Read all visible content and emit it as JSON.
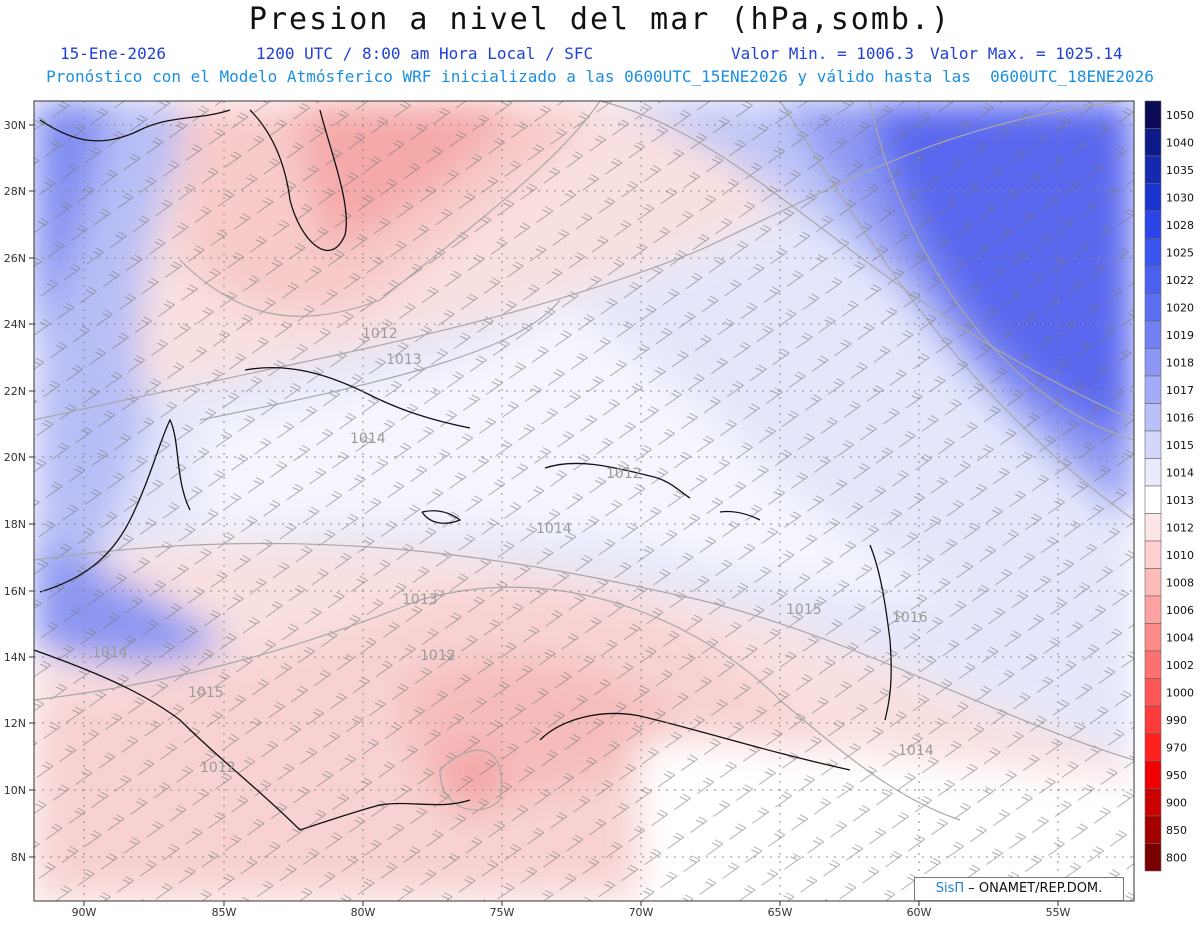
{
  "title": "Presion a nivel del mar (hPa,somb.)",
  "header": {
    "date": "15-Ene-2026",
    "time_info": "1200 UTC / 8:00 am Hora Local / SFC",
    "valor_min": "Valor Min. = 1006.3",
    "valor_max": "Valor Max. = 1025.14",
    "forecast_line": "Pronóstico con el Modelo Atmósferico WRF inicializado a las 0600UTC_15ENE2026 y válido hasta las  0600UTC_18ENE2026"
  },
  "map": {
    "lat_labels": [
      "30N",
      "28N",
      "26N",
      "24N",
      "22N",
      "20N",
      "18N",
      "16N",
      "14N",
      "12N",
      "10N",
      "8N"
    ],
    "lon_labels": [
      "90W",
      "85W",
      "80W",
      "75W",
      "70W",
      "65W",
      "60W",
      "55W"
    ],
    "contour_labels": [
      "1012",
      "1013",
      "1014",
      "1012",
      "1014",
      "1013",
      "1015",
      "1016",
      "1012",
      "1014",
      "1015",
      "1014",
      "1012"
    ],
    "colors": {
      "high": "#4f5ff2",
      "mid": "#dfe3fa",
      "neutral": "#ffffff",
      "low": "#f7c9c9",
      "lowest": "#f4a5a5"
    }
  },
  "legend": {
    "levels": [
      "1050",
      "1040",
      "1035",
      "1030",
      "1028",
      "1025",
      "1022",
      "1020",
      "1019",
      "1018",
      "1017",
      "1016",
      "1015",
      "1014",
      "1013",
      "1012",
      "1010",
      "1008",
      "1006",
      "1004",
      "1002",
      "1000",
      "990",
      "970",
      "950",
      "900",
      "850",
      "800"
    ],
    "colors": [
      "#0a0a55",
      "#0e1a8a",
      "#1428b0",
      "#1a34d0",
      "#2a44e6",
      "#3a52ee",
      "#4b60f0",
      "#5c6ff2",
      "#7380f3",
      "#8b96f5",
      "#a2abf7",
      "#bac1f9",
      "#d3d7fb",
      "#e9ebfd",
      "#ffffff",
      "#ffe6e6",
      "#ffd0d0",
      "#ffbaba",
      "#ffa2a2",
      "#ff8a8a",
      "#ff7070",
      "#ff5555",
      "#ff3a3a",
      "#ff2020",
      "#ee0000",
      "#cc0000",
      "#a40000",
      "#7a0000"
    ]
  },
  "credit": {
    "brand": "SisΠ",
    "text": "– ONAMET/REP.DOM."
  }
}
